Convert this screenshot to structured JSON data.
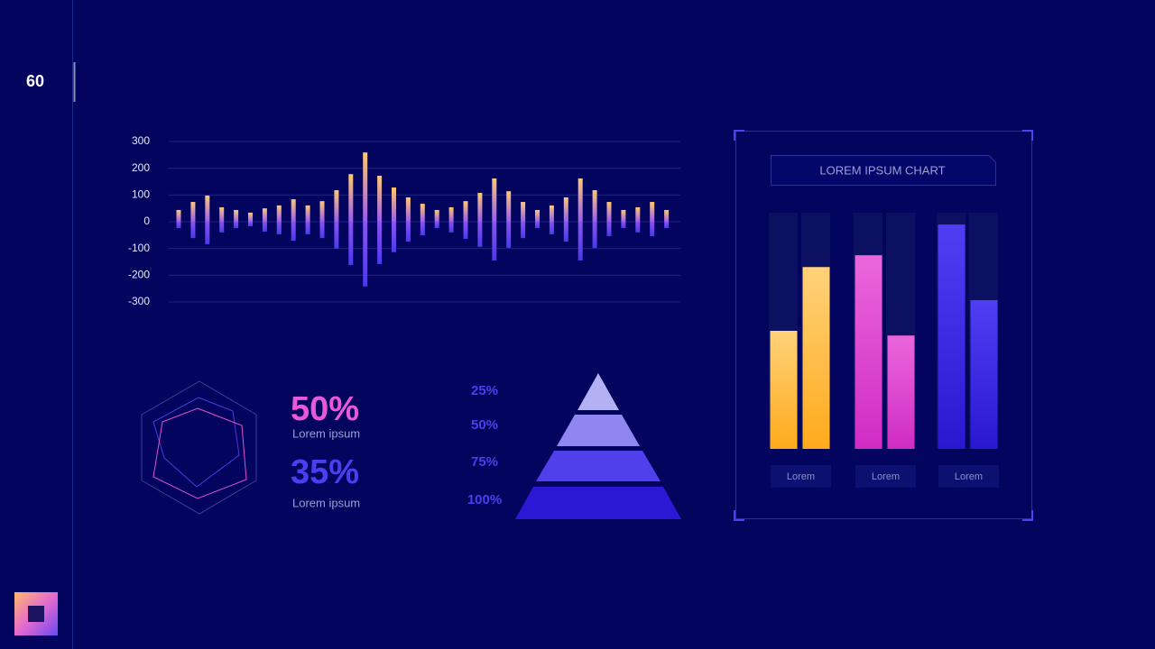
{
  "page_number": "60",
  "stats": [
    {
      "value": "50%",
      "label": "Lorem ipsum"
    },
    {
      "value": "35%",
      "label": "Lorem ipsum"
    }
  ],
  "pyramid": {
    "labels": [
      "25%",
      "50%",
      "75%",
      "100%"
    ]
  },
  "chart_data": [
    {
      "type": "wave",
      "ylim": [
        -300,
        300
      ],
      "yticks": [
        300,
        200,
        100,
        0,
        -100,
        -200,
        -300
      ],
      "grid": true,
      "series": [
        {
          "color": "#ffc870",
          "values": [
            44,
            74,
            98,
            54,
            44,
            34,
            50,
            61,
            84,
            61,
            77,
            118,
            178,
            259,
            172,
            128,
            91,
            67,
            44,
            54,
            77,
            108,
            162,
            114,
            74,
            44,
            61,
            91,
            162,
            118,
            74,
            44,
            54,
            74,
            44
          ]
        },
        {
          "color": "#5a3cf0",
          "values": [
            -24,
            -61,
            -84,
            -40,
            -24,
            -17,
            -37,
            -47,
            -71,
            -47,
            -61,
            -101,
            -162,
            -242,
            -158,
            -114,
            -74,
            -51,
            -24,
            -40,
            -64,
            -94,
            -145,
            -98,
            -61,
            -24,
            -47,
            -74,
            -145,
            -98,
            -54,
            -24,
            -40,
            -54,
            -24
          ]
        }
      ]
    },
    {
      "type": "bar",
      "title": "LOREM IPSUM CHART",
      "categories": [
        "Lorem",
        "Lorem",
        "Lorem"
      ],
      "colors": [
        "#ffb62a",
        "#e048cc",
        "#3f2ee8"
      ],
      "ylim": [
        0,
        100
      ],
      "series": [
        {
          "values": [
            50,
            82,
            95
          ]
        },
        {
          "values": [
            77,
            48,
            63
          ]
        }
      ]
    }
  ]
}
